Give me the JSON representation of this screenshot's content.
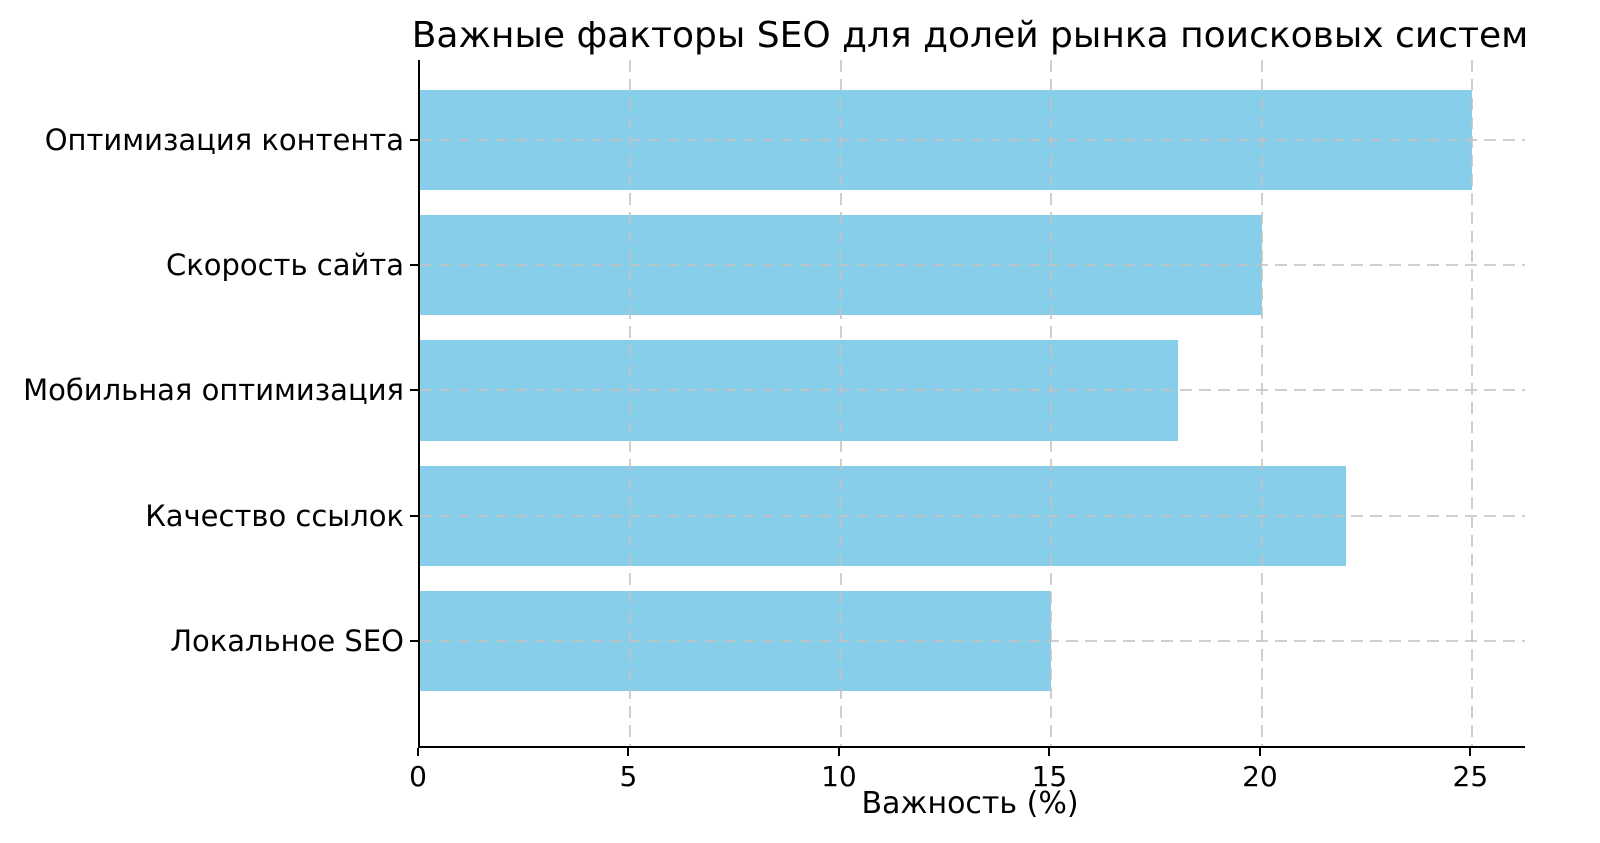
{
  "chart_data": {
    "type": "bar",
    "orientation": "horizontal",
    "title": "Важные факторы SEO для долей рынка поисковых систем",
    "categories": [
      "Оптимизация контента",
      "Скорость сайта",
      "Мобильная оптимизация",
      "Качество ссылок",
      "Локальное SEO"
    ],
    "values": [
      25,
      20,
      18,
      22,
      15
    ],
    "xlabel": "Важность (%)",
    "ylabel": "",
    "x_ticks": [
      0,
      5,
      10,
      15,
      20,
      25
    ],
    "xlim": [
      0,
      26.25
    ],
    "bar_color": "#87CEEB",
    "grid": true,
    "grid_style": "dashed",
    "grid_color": "#c3c3c3",
    "axis_color": "#000000",
    "text_color": "#000000",
    "background": "#ffffff",
    "legend": false
  }
}
